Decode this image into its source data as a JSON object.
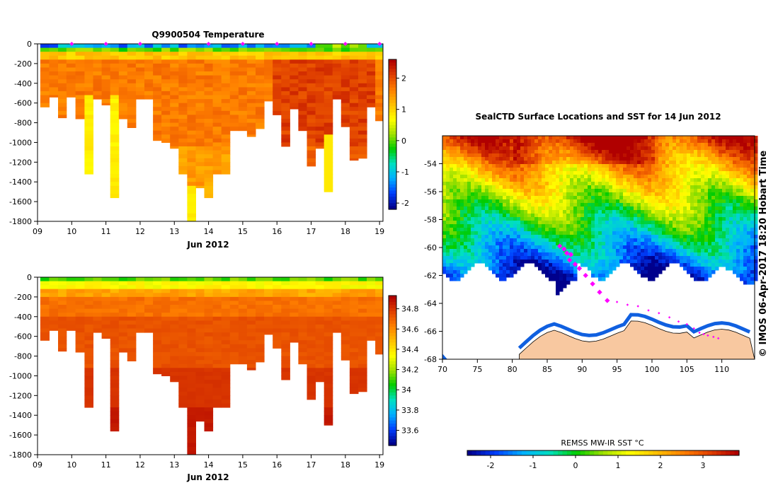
{
  "chart_data": [
    {
      "type": "heatmap",
      "title": "Q9900504  Temperature",
      "xlabel": "Jun 2012",
      "ylabel": "",
      "x_tick_labels": [
        "09",
        "10",
        "11",
        "12",
        "13",
        "14",
        "15",
        "16",
        "17",
        "18",
        "19"
      ],
      "xlim": [
        9.0,
        19.1
      ],
      "ylim": [
        -1800,
        0
      ],
      "y_ticks": [
        0,
        -200,
        -400,
        -600,
        -800,
        -1000,
        -1200,
        -1400,
        -1600,
        -1800
      ],
      "colorbar": {
        "ticks": [
          2,
          1,
          0,
          -1,
          -2
        ],
        "range": [
          -2.2,
          2.6
        ]
      },
      "profile_times": [
        9.2,
        9.48,
        9.72,
        9.97,
        10.25,
        10.5,
        10.75,
        11.0,
        11.25,
        11.5,
        11.75,
        12.0,
        12.25,
        12.5,
        12.75,
        13.0,
        13.25,
        13.5,
        13.75,
        14.0,
        14.25,
        14.5,
        14.75,
        15.0,
        15.25,
        15.5,
        15.75,
        16.0,
        16.25,
        16.5,
        16.75,
        17.0,
        17.25,
        17.5,
        17.75,
        18.0,
        18.25,
        18.5,
        18.75,
        19.0
      ],
      "profile_bottom_depths": [
        -640,
        -540,
        -750,
        -540,
        -760,
        -1320,
        -560,
        -620,
        -1560,
        -760,
        -850,
        -560,
        -560,
        -980,
        -1000,
        -1060,
        -1320,
        -1800,
        -1460,
        -1560,
        -1320,
        -1320,
        -880,
        -880,
        -940,
        -860,
        -580,
        -720,
        -1040,
        -660,
        -880,
        -1240,
        -1060,
        -1500,
        -560,
        -840,
        -1180,
        -1160,
        -640,
        -780
      ],
      "surface_marker_times": [
        10.0,
        11.0,
        12.0,
        14.0,
        15.0,
        16.0,
        17.0,
        18.0,
        19.0
      ]
    },
    {
      "type": "heatmap",
      "title": "",
      "xlabel": "Jun 2012",
      "ylabel": "",
      "x_tick_labels": [
        "09",
        "10",
        "11",
        "12",
        "13",
        "14",
        "15",
        "16",
        "17",
        "18",
        "19"
      ],
      "xlim": [
        9.0,
        19.1
      ],
      "ylim": [
        -1800,
        0
      ],
      "y_ticks": [
        0,
        -200,
        -400,
        -600,
        -800,
        -1000,
        -1200,
        -1400,
        -1600,
        -1800
      ],
      "colorbar": {
        "ticks": [
          34.8,
          34.6,
          34.4,
          34.2,
          34.0,
          33.8,
          33.6
        ],
        "range": [
          33.45,
          34.93
        ]
      }
    },
    {
      "type": "heatmap",
      "title": "SealCTD Surface Locations and SST for 14 Jun 2012",
      "xlabel": "",
      "ylabel": "",
      "x_ticks": [
        70,
        75,
        80,
        85,
        90,
        95,
        100,
        105,
        110
      ],
      "y_ticks": [
        -54,
        -56,
        -58,
        -60,
        -62,
        -64,
        -66,
        -68
      ],
      "xlim": [
        70,
        114.7
      ],
      "ylim": [
        -68,
        -52
      ],
      "colorbar": {
        "label": "REMSS MW-IR SST °C",
        "ticks": [
          -2,
          -1,
          0,
          1,
          2,
          3
        ],
        "range": [
          -2.55,
          3.85
        ]
      },
      "track_points": [
        {
          "lon": 86.8,
          "lat": -59.9
        },
        {
          "lon": 87.4,
          "lat": -60.1
        },
        {
          "lon": 87.8,
          "lat": -60.4
        },
        {
          "lon": 88.4,
          "lat": -60.5
        },
        {
          "lon": 88.2,
          "lat": -60.9
        },
        {
          "lon": 89.0,
          "lat": -61.2
        },
        {
          "lon": 89.6,
          "lat": -61.5
        },
        {
          "lon": 90.5,
          "lat": -62.0
        },
        {
          "lon": 91.5,
          "lat": -62.6
        },
        {
          "lon": 92.5,
          "lat": -63.2
        },
        {
          "lon": 93.6,
          "lat": -63.8
        },
        {
          "lon": 95.0,
          "lat": -63.9
        },
        {
          "lon": 96.5,
          "lat": -64.1
        },
        {
          "lon": 98.0,
          "lat": -64.2
        },
        {
          "lon": 99.5,
          "lat": -64.5
        },
        {
          "lon": 101.0,
          "lat": -64.7
        },
        {
          "lon": 102.5,
          "lat": -65.0
        },
        {
          "lon": 103.8,
          "lat": -65.3
        },
        {
          "lon": 105.0,
          "lat": -65.5
        },
        {
          "lon": 106.0,
          "lat": -65.8
        },
        {
          "lon": 106.8,
          "lat": -66.1
        },
        {
          "lon": 107.4,
          "lat": -66.2
        },
        {
          "lon": 108.0,
          "lat": -66.3
        },
        {
          "lon": 108.8,
          "lat": -66.4
        },
        {
          "lon": 109.5,
          "lat": -66.5
        }
      ]
    }
  ],
  "colors": {
    "land": "#f8c8a0",
    "track": "#ff00ff",
    "colormap": [
      "#00008c",
      "#0040ff",
      "#00b0ff",
      "#00e0c0",
      "#00cc00",
      "#a0e000",
      "#ffff00",
      "#ffc000",
      "#ff8000",
      "#e04000",
      "#b00000"
    ]
  },
  "credit": "© IMOS 06-Apr-2017 18:20 Hobart Time"
}
